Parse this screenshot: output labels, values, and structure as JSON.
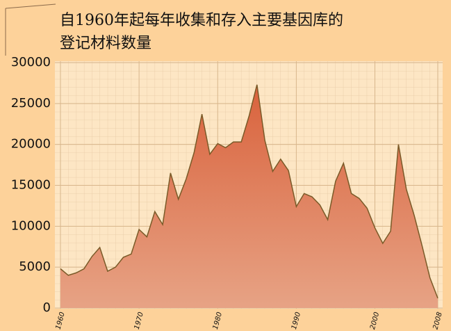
{
  "chart_data": {
    "type": "area",
    "title": [
      "自1960年起每年收集和存入主要基因库的",
      "登记材料数量"
    ],
    "x": [
      1960,
      1961,
      1962,
      1963,
      1964,
      1965,
      1966,
      1967,
      1968,
      1969,
      1970,
      1971,
      1972,
      1973,
      1974,
      1975,
      1976,
      1977,
      1978,
      1979,
      1980,
      1981,
      1982,
      1983,
      1984,
      1985,
      1986,
      1987,
      1988,
      1989,
      1990,
      1991,
      1992,
      1993,
      1994,
      1995,
      1996,
      1997,
      1998,
      1999,
      2000,
      2001,
      2002,
      2003,
      2004,
      2005,
      2006,
      2007,
      2008
    ],
    "values": [
      4800,
      4000,
      4300,
      4800,
      6300,
      7400,
      4500,
      5000,
      6200,
      6600,
      9600,
      8700,
      11800,
      10200,
      16500,
      13300,
      15800,
      19000,
      23700,
      18800,
      20100,
      19600,
      20300,
      20300,
      23500,
      27300,
      20500,
      16700,
      18200,
      16800,
      12400,
      14000,
      13600,
      12600,
      10800,
      15500,
      17700,
      14000,
      13400,
      12200,
      9800,
      7900,
      9400,
      20000,
      14500,
      11300,
      7600,
      3700,
      1200
    ],
    "color": "#d9623c",
    "xlim": [
      1960,
      2008
    ],
    "xticks": [
      1960,
      1970,
      1980,
      1990,
      2000,
      2008
    ],
    "ylim": [
      0,
      30000
    ],
    "yticks": [
      0,
      5000,
      10000,
      15000,
      20000,
      25000,
      30000
    ],
    "grid": true
  }
}
